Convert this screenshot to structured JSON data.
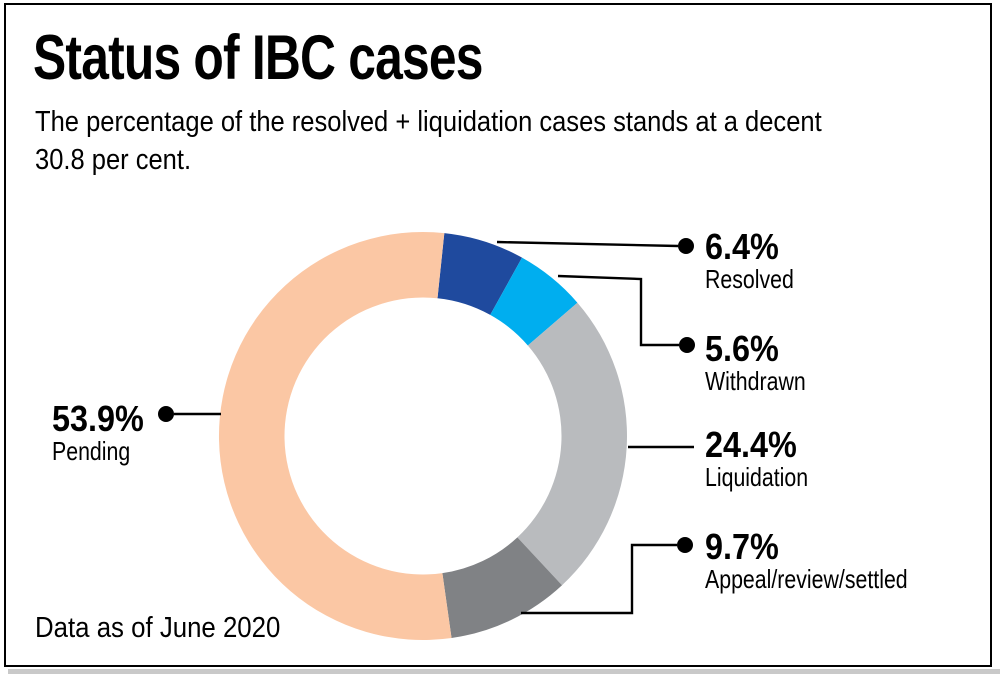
{
  "header": {
    "title": "Status of IBC cases",
    "subtitle_lines": [
      "The percentage of the resolved + liquidation cases stands at a decent",
      "30.8 per cent."
    ]
  },
  "footer": {
    "note": "Data as of June 2020"
  },
  "chart_data": {
    "type": "pie",
    "subtype": "donut",
    "title": "Status of IBC cases",
    "unit": "%",
    "categories": [
      "Resolved",
      "Withdrawn",
      "Liquidation",
      "Appeal/review/settled",
      "Pending"
    ],
    "values": [
      6.4,
      5.6,
      24.4,
      9.7,
      53.9
    ],
    "display_labels": [
      "6.4%",
      "5.6%",
      "24.4%",
      "9.7%",
      "53.9%"
    ],
    "colors": [
      "#1F4A9E",
      "#00AEEF",
      "#B9BBBE",
      "#808285",
      "#FBC7A4"
    ],
    "start_angle_deg": 6,
    "direction": "clockwise",
    "legend_position": "callouts",
    "note": "Data as of June 2020",
    "leader_line_color": "#000000"
  }
}
